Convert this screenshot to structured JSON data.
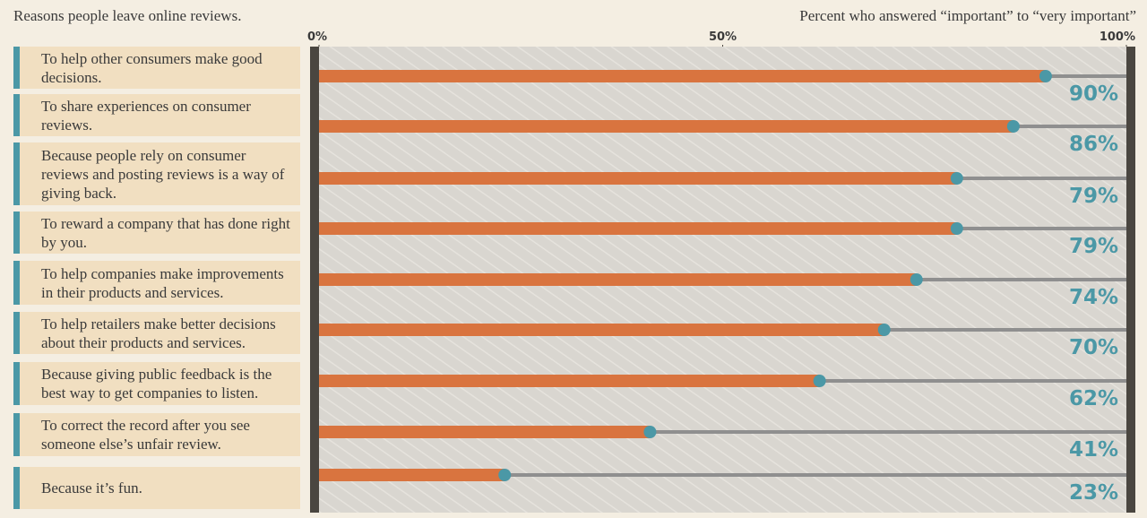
{
  "chart_data": {
    "type": "bar",
    "orientation": "horizontal",
    "title": "Reasons people leave online reviews.",
    "x_label": "Percent who answered “important” to “very important”",
    "categories": [
      "To help other consumers make good decisions.",
      "To share experiences on consumer reviews.",
      "Because people rely on consumer reviews and posting reviews is a way of giving back.",
      "To reward a company that has done right by you.",
      "To help companies make improvements in their products and services.",
      "To help retailers make better decisions about their products and services.",
      "Because giving public feedback is the best way to get companies to listen.",
      "To correct the record after you see someone else’s unfair review.",
      "Because it’s fun."
    ],
    "values": [
      90,
      86,
      79,
      79,
      74,
      70,
      62,
      41,
      23
    ],
    "value_labels": [
      "90%",
      "86%",
      "79%",
      "79%",
      "74%",
      "70%",
      "62%",
      "41%",
      "23%"
    ],
    "color": "#d9743f",
    "marker_color": "#4b98a6",
    "xlim": [
      0,
      100
    ],
    "xticks": [
      {
        "value": 0,
        "label": "0%"
      },
      {
        "value": 50,
        "label": "50%"
      },
      {
        "value": 100,
        "label": "100%"
      }
    ]
  }
}
